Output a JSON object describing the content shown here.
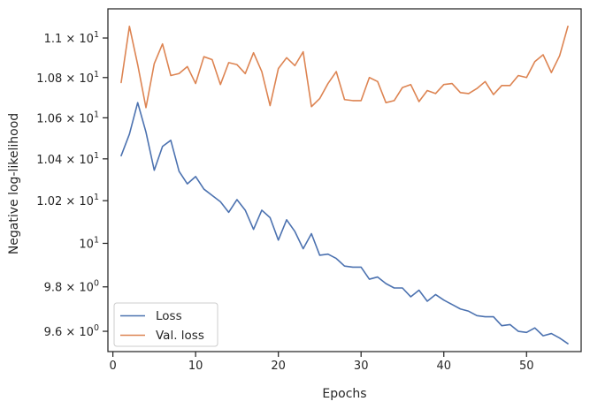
{
  "chart_data": {
    "type": "line",
    "xlabel": "Epochs",
    "ylabel": "Negative log-likelihood",
    "yscale": "log",
    "xlim": [
      -0.6,
      56.6
    ],
    "ylim": [
      9.51,
      11.15
    ],
    "grid": false,
    "legend_position": "lower-left",
    "x_ticks": [
      {
        "value": 0,
        "label": "0"
      },
      {
        "value": 10,
        "label": "10"
      },
      {
        "value": 20,
        "label": "20"
      },
      {
        "value": 30,
        "label": "30"
      },
      {
        "value": 40,
        "label": "40"
      },
      {
        "value": 50,
        "label": "50"
      }
    ],
    "y_ticks": [
      {
        "value": 9.6,
        "mantissa": "9.6",
        "label": "9.6 × 10⁰"
      },
      {
        "value": 9.8,
        "mantissa": "9.8",
        "label": "9.8 × 10⁰"
      },
      {
        "value": 10,
        "mantissa": "",
        "label": "10¹"
      },
      {
        "value": 10.2,
        "mantissa": "1.02",
        "label": "1.02 × 10¹"
      },
      {
        "value": 10.4,
        "mantissa": "1.04",
        "label": "1.04 × 10¹"
      },
      {
        "value": 10.6,
        "mantissa": "1.06",
        "label": "1.06 × 10¹"
      },
      {
        "value": 10.8,
        "mantissa": "1.08",
        "label": "1.08 × 10¹"
      },
      {
        "value": 11.0,
        "mantissa": "1.1",
        "label": "1.1 × 10¹"
      }
    ],
    "x": [
      1,
      2,
      3,
      4,
      5,
      6,
      7,
      8,
      9,
      10,
      11,
      12,
      13,
      14,
      15,
      16,
      17,
      18,
      19,
      20,
      21,
      22,
      23,
      24,
      25,
      26,
      27,
      28,
      29,
      30,
      31,
      32,
      33,
      34,
      35,
      36,
      37,
      38,
      39,
      40,
      41,
      42,
      43,
      44,
      45,
      46,
      47,
      48,
      49,
      50,
      51,
      52,
      53,
      54,
      55
    ],
    "series": [
      {
        "name": "Loss",
        "color": "#4c72b0",
        "values": [
          10.415,
          10.52,
          10.675,
          10.53,
          10.345,
          10.46,
          10.49,
          10.34,
          10.28,
          10.315,
          10.255,
          10.225,
          10.195,
          10.145,
          10.205,
          10.155,
          10.065,
          10.155,
          10.12,
          10.015,
          10.11,
          10.055,
          9.975,
          10.045,
          9.945,
          9.95,
          9.93,
          9.895,
          9.89,
          9.89,
          9.835,
          9.845,
          9.815,
          9.795,
          9.795,
          9.755,
          9.785,
          9.735,
          9.765,
          9.74,
          9.72,
          9.7,
          9.69,
          9.67,
          9.665,
          9.665,
          9.625,
          9.63,
          9.6,
          9.595,
          9.615,
          9.58,
          9.59,
          9.57,
          9.545
        ]
      },
      {
        "name": "Val. loss",
        "color": "#dd8452",
        "values": [
          10.775,
          11.06,
          10.865,
          10.65,
          10.87,
          10.97,
          10.81,
          10.82,
          10.855,
          10.77,
          10.905,
          10.89,
          10.765,
          10.875,
          10.865,
          10.82,
          10.925,
          10.83,
          10.66,
          10.845,
          10.9,
          10.86,
          10.93,
          10.655,
          10.695,
          10.77,
          10.83,
          10.69,
          10.685,
          10.685,
          10.8,
          10.78,
          10.675,
          10.685,
          10.75,
          10.765,
          10.68,
          10.735,
          10.72,
          10.765,
          10.77,
          10.725,
          10.72,
          10.745,
          10.78,
          10.715,
          10.76,
          10.76,
          10.81,
          10.8,
          10.88,
          10.915,
          10.825,
          10.91,
          11.06
        ]
      }
    ]
  }
}
